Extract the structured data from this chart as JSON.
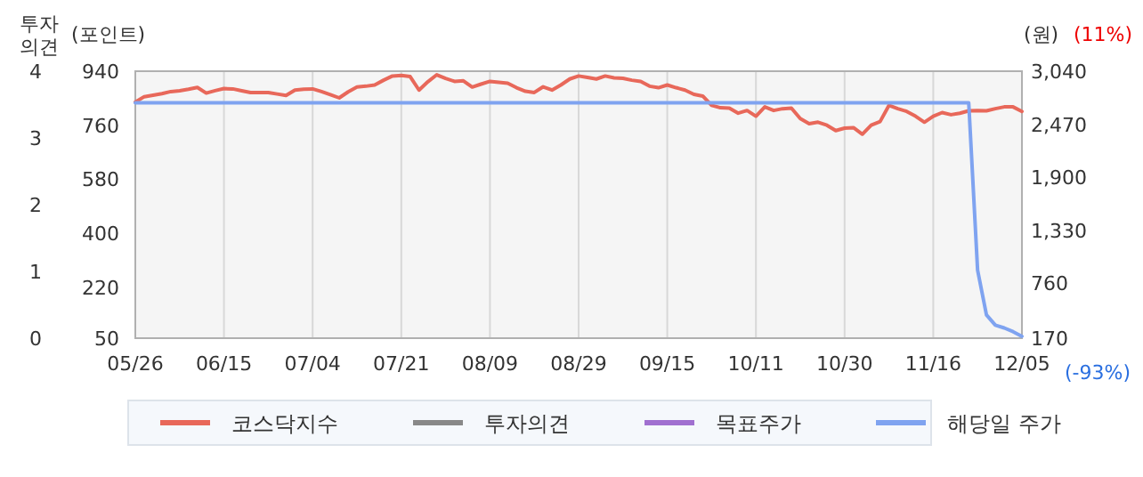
{
  "chart_data": {
    "type": "line",
    "ylabel": "투자의견",
    "y2label": "(포인트)",
    "y3label": "(원)",
    "categories": [
      "05/26",
      null,
      null,
      null,
      null,
      null,
      null,
      null,
      null,
      null,
      "06/15",
      null,
      null,
      null,
      null,
      null,
      null,
      null,
      null,
      null,
      "07/04",
      null,
      null,
      null,
      null,
      null,
      null,
      null,
      null,
      null,
      "07/21",
      null,
      null,
      null,
      null,
      null,
      null,
      null,
      null,
      null,
      "08/09",
      null,
      null,
      null,
      null,
      null,
      null,
      null,
      null,
      null,
      "08/29",
      null,
      null,
      null,
      null,
      null,
      null,
      null,
      null,
      null,
      "09/15",
      null,
      null,
      null,
      null,
      null,
      null,
      null,
      null,
      null,
      "10/11",
      null,
      null,
      null,
      null,
      null,
      null,
      null,
      null,
      null,
      "10/30",
      null,
      null,
      null,
      null,
      null,
      null,
      null,
      null,
      null,
      "11/16",
      null,
      null,
      null,
      null,
      null,
      null,
      null,
      null,
      null,
      "12/05"
    ],
    "ylim": [
      0,
      4
    ],
    "yticks": [
      0,
      1,
      2,
      3,
      4
    ],
    "y2lim": [
      50,
      940
    ],
    "y2ticks": [
      50,
      220,
      400,
      580,
      760,
      940
    ],
    "y3lim": [
      170,
      3040
    ],
    "y3ticks": [
      170,
      {
        "value": 760,
        "label": "760"
      },
      {
        "value": 1330,
        "label": "1,330"
      },
      {
        "value": 1900,
        "label": "1,900"
      },
      {
        "value": 2470,
        "label": "2,470"
      },
      {
        "value": 3040,
        "label": "3,040"
      }
    ],
    "grid": "x",
    "legend": "bottom",
    "marker": "none",
    "line_style": "solid",
    "annotations": [
      "(11%)",
      "(-93%)"
    ],
    "series": [
      {
        "name": "코스닥지수",
        "color": "#e8685a",
        "axis": "y2",
        "values": [
          837,
          855,
          860,
          865,
          872,
          875,
          880,
          886,
          867,
          875,
          882,
          881,
          875,
          869,
          869,
          869,
          864,
          859,
          877,
          880,
          881,
          872,
          862,
          851,
          871,
          887,
          890,
          894,
          910,
          924,
          926,
          922,
          877,
          905,
          928,
          916,
          906,
          908,
          887,
          897,
          906,
          903,
          900,
          885,
          873,
          869,
          888,
          877,
          894,
          914,
          924,
          919,
          914,
          924,
          918,
          916,
          910,
          906,
          890,
          885,
          894,
          885,
          877,
          863,
          857,
          826,
          818,
          817,
          800,
          809,
          790,
          821,
          809,
          815,
          817,
          782,
          765,
          770,
          760,
          742,
          750,
          752,
          730,
          760,
          772,
          826,
          815,
          806,
          790,
          770,
          790,
          802,
          795,
          800,
          808,
          809,
          808,
          815,
          821,
          821,
          806
        ]
      },
      {
        "name": "투자의견",
        "color": "#888888",
        "axis": "y",
        "values": [
          null,
          null,
          null,
          null,
          null,
          null,
          null,
          null,
          null,
          null,
          null,
          null,
          null,
          null,
          null,
          null,
          null,
          null,
          null,
          null,
          null,
          null,
          null,
          null,
          null,
          null,
          null,
          null,
          null,
          null,
          null,
          null,
          null,
          null,
          null,
          null,
          null,
          null,
          null,
          null,
          null,
          null,
          null,
          null,
          null,
          null,
          null,
          null,
          null,
          null,
          null,
          null,
          null,
          null,
          null,
          null,
          null,
          null,
          null,
          null,
          null,
          null,
          null,
          null,
          null,
          null,
          null,
          null,
          null,
          null,
          null,
          null,
          null,
          null,
          null,
          null,
          null,
          null,
          null,
          null,
          null,
          null,
          null,
          null,
          null,
          null,
          null,
          null,
          null,
          null,
          null,
          null,
          null,
          null,
          null,
          null,
          null,
          null,
          null,
          null,
          null
        ]
      },
      {
        "name": "목표주가",
        "color": "#a070d0",
        "axis": "y3",
        "values": [
          null,
          null,
          null,
          null,
          null,
          null,
          null,
          null,
          null,
          null,
          null,
          null,
          null,
          null,
          null,
          null,
          null,
          null,
          null,
          null,
          null,
          null,
          null,
          null,
          null,
          null,
          null,
          null,
          null,
          null,
          null,
          null,
          null,
          null,
          null,
          null,
          null,
          null,
          null,
          null,
          null,
          null,
          null,
          null,
          null,
          null,
          null,
          null,
          null,
          null,
          null,
          null,
          null,
          null,
          null,
          null,
          null,
          null,
          null,
          null,
          null,
          null,
          null,
          null,
          null,
          null,
          null,
          null,
          null,
          null,
          null,
          null,
          null,
          null,
          null,
          null,
          null,
          null,
          null,
          null,
          null,
          null,
          null,
          null,
          null,
          null,
          null,
          null,
          null,
          null,
          null,
          null,
          null,
          null,
          null,
          null,
          null,
          null,
          null,
          null,
          null
        ]
      },
      {
        "name": "해당일 주가",
        "color": "#7fa3f0",
        "axis": "y3",
        "values": [
          2700,
          2700,
          2700,
          2700,
          2700,
          2700,
          2700,
          2700,
          2700,
          2700,
          2700,
          2700,
          2700,
          2700,
          2700,
          2700,
          2700,
          2700,
          2700,
          2700,
          2700,
          2700,
          2700,
          2700,
          2700,
          2700,
          2700,
          2700,
          2700,
          2700,
          2700,
          2700,
          2700,
          2700,
          2700,
          2700,
          2700,
          2700,
          2700,
          2700,
          2700,
          2700,
          2700,
          2700,
          2700,
          2700,
          2700,
          2700,
          2700,
          2700,
          2700,
          2700,
          2700,
          2700,
          2700,
          2700,
          2700,
          2700,
          2700,
          2700,
          2700,
          2700,
          2700,
          2700,
          2700,
          2700,
          2700,
          2700,
          2700,
          2700,
          2700,
          2700,
          2700,
          2700,
          2700,
          2700,
          2700,
          2700,
          2700,
          2700,
          2700,
          2700,
          2700,
          2700,
          2700,
          2700,
          2700,
          2700,
          2700,
          2700,
          2700,
          2700,
          2700,
          2700,
          2700,
          900,
          420,
          310,
          280,
          240,
          190
        ]
      }
    ]
  }
}
